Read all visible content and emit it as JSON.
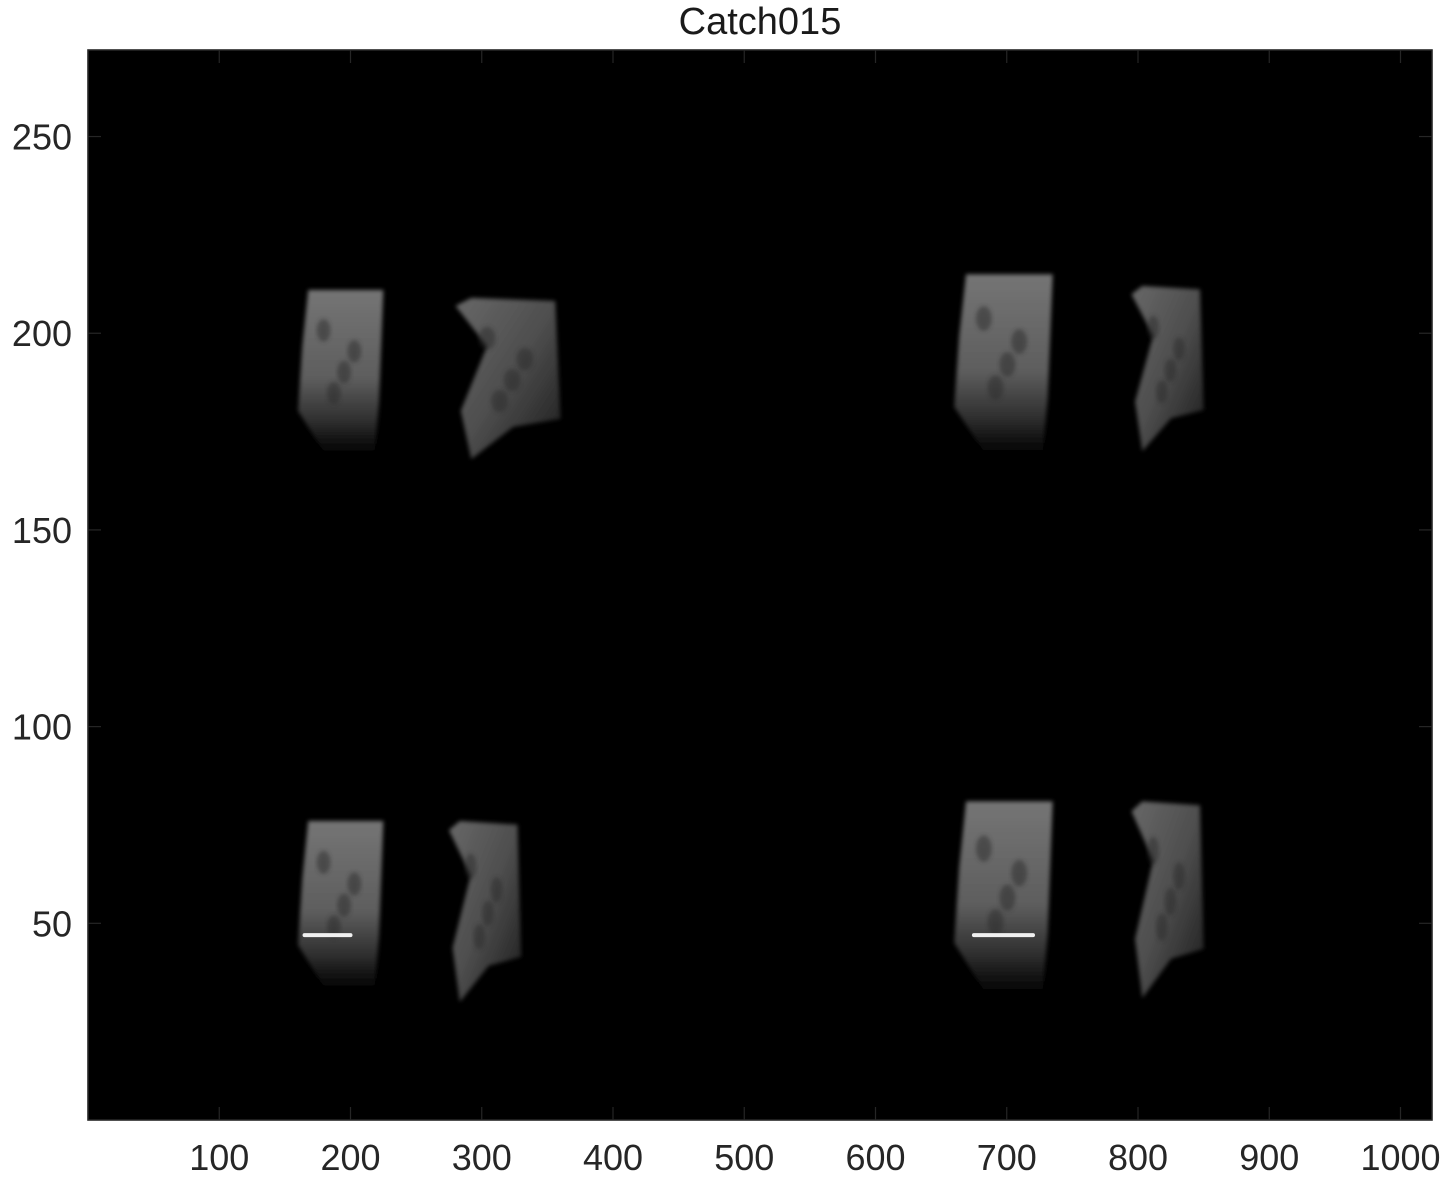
{
  "chart_data": {
    "type": "heatmap",
    "title": "Catch015",
    "xlabel": "",
    "ylabel": "",
    "xlim": [
      0,
      1024
    ],
    "ylim": [
      0,
      272
    ],
    "y_direction": "normal",
    "x_ticks": [
      100,
      200,
      300,
      400,
      500,
      600,
      700,
      800,
      900,
      1000
    ],
    "y_ticks": [
      50,
      100,
      150,
      200,
      250
    ],
    "x_tick_labels": [
      "100",
      "200",
      "300",
      "400",
      "500",
      "600",
      "700",
      "800",
      "900",
      "1000"
    ],
    "y_tick_labels": [
      "50",
      "100",
      "150",
      "200",
      "250"
    ],
    "colormap": "gray",
    "background_value": 0,
    "description_regions": [
      {
        "name": "upper-left-a",
        "x": [
          160,
          225
        ],
        "y": [
          170,
          211
        ]
      },
      {
        "name": "upper-left-b",
        "x": [
          280,
          360
        ],
        "y": [
          168,
          209
        ]
      },
      {
        "name": "upper-right-a",
        "x": [
          660,
          735
        ],
        "y": [
          170,
          215
        ]
      },
      {
        "name": "upper-right-b",
        "x": [
          795,
          850
        ],
        "y": [
          170,
          212
        ]
      },
      {
        "name": "lower-left-a",
        "x": [
          160,
          225
        ],
        "y": [
          34,
          76
        ]
      },
      {
        "name": "lower-left-b",
        "x": [
          275,
          330
        ],
        "y": [
          30,
          76
        ]
      },
      {
        "name": "lower-right-a",
        "x": [
          660,
          735
        ],
        "y": [
          33,
          81
        ]
      },
      {
        "name": "lower-right-b",
        "x": [
          795,
          850
        ],
        "y": [
          31,
          81
        ]
      }
    ],
    "bright_lines": [
      {
        "x": [
          165,
          200
        ],
        "y": 47
      },
      {
        "x": [
          675,
          720
        ],
        "y": 47
      }
    ],
    "grid": false
  }
}
